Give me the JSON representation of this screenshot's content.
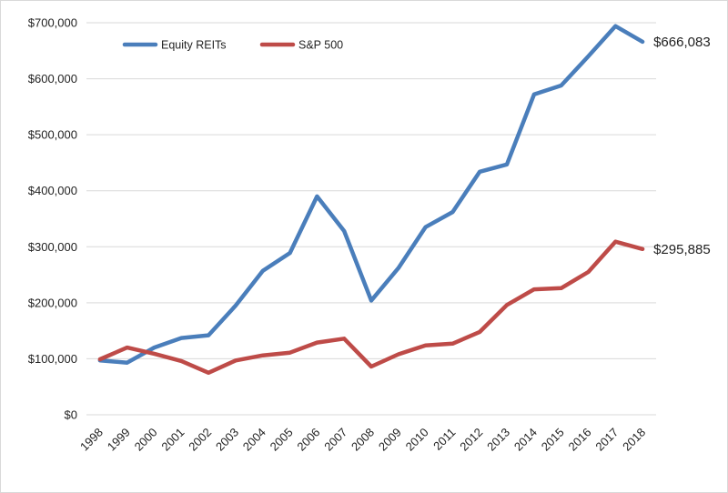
{
  "chart_data": {
    "type": "line",
    "title": "",
    "xlabel": "",
    "ylabel": "",
    "categories": [
      "1998",
      "1999",
      "2000",
      "2001",
      "2002",
      "2003",
      "2004",
      "2005",
      "2006",
      "2007",
      "2008",
      "2009",
      "2010",
      "2011",
      "2012",
      "2013",
      "2014",
      "2015",
      "2016",
      "2017",
      "2018"
    ],
    "ylim": [
      0,
      700000
    ],
    "y_ticks": [
      0,
      100000,
      200000,
      300000,
      400000,
      500000,
      600000,
      700000
    ],
    "y_tick_labels": [
      "$0",
      "$100,000",
      "$200,000",
      "$300,000",
      "$400,000",
      "$500,000",
      "$600,000",
      "$700,000"
    ],
    "grid": "horizontal",
    "legend_position": "top-left",
    "series": [
      {
        "name": "Equity REITs",
        "color": "#4a7ebb",
        "values": [
          97000,
          93000,
          120000,
          137000,
          142000,
          195000,
          257000,
          289000,
          390000,
          328000,
          204000,
          262000,
          335000,
          362000,
          434000,
          447000,
          572000,
          588000,
          640000,
          694000,
          666083
        ],
        "end_label": "$666,083"
      },
      {
        "name": "S&P 500",
        "color": "#be4b48",
        "values": [
          99000,
          120000,
          109000,
          96000,
          75000,
          97000,
          106000,
          111000,
          129000,
          136000,
          86000,
          108000,
          124000,
          127000,
          148000,
          196000,
          224000,
          226000,
          255000,
          309000,
          295885
        ],
        "end_label": "$295,885"
      }
    ]
  }
}
